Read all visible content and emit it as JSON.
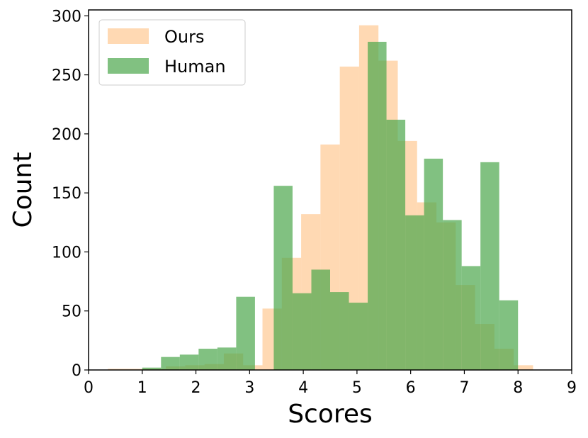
{
  "chart_data": {
    "type": "bar",
    "subtype": "overlapping-histogram",
    "xlabel": "Scores",
    "ylabel": "Count",
    "xlim": [
      0,
      9
    ],
    "ylim": [
      0,
      305
    ],
    "xticks": [
      "0",
      "1",
      "2",
      "3",
      "4",
      "5",
      "6",
      "7",
      "8",
      "9"
    ],
    "yticks": [
      "0",
      "50",
      "100",
      "150",
      "200",
      "250",
      "300"
    ],
    "grid": false,
    "legend_position": "top-left",
    "series": [
      {
        "name": "Ours",
        "color": "#ffbf80",
        "bins": [
          {
            "x0": 0.36,
            "x1": 0.72,
            "count": 1
          },
          {
            "x0": 0.72,
            "x1": 1.08,
            "count": 1
          },
          {
            "x0": 1.08,
            "x1": 1.44,
            "count": 1
          },
          {
            "x0": 1.44,
            "x1": 1.8,
            "count": 3
          },
          {
            "x0": 1.8,
            "x1": 2.16,
            "count": 4
          },
          {
            "x0": 2.16,
            "x1": 2.52,
            "count": 5
          },
          {
            "x0": 2.52,
            "x1": 2.88,
            "count": 14
          },
          {
            "x0": 2.88,
            "x1": 3.24,
            "count": 4
          },
          {
            "x0": 3.24,
            "x1": 3.6,
            "count": 52
          },
          {
            "x0": 3.6,
            "x1": 3.96,
            "count": 95
          },
          {
            "x0": 3.96,
            "x1": 4.32,
            "count": 132
          },
          {
            "x0": 4.32,
            "x1": 4.68,
            "count": 191
          },
          {
            "x0": 4.68,
            "x1": 5.04,
            "count": 257
          },
          {
            "x0": 5.04,
            "x1": 5.4,
            "count": 292
          },
          {
            "x0": 5.4,
            "x1": 5.76,
            "count": 262
          },
          {
            "x0": 5.76,
            "x1": 6.12,
            "count": 194
          },
          {
            "x0": 6.12,
            "x1": 6.48,
            "count": 142
          },
          {
            "x0": 6.48,
            "x1": 6.84,
            "count": 125
          },
          {
            "x0": 6.84,
            "x1": 7.2,
            "count": 72
          },
          {
            "x0": 7.2,
            "x1": 7.56,
            "count": 39
          },
          {
            "x0": 7.56,
            "x1": 7.92,
            "count": 18
          },
          {
            "x0": 7.92,
            "x1": 8.28,
            "count": 4
          }
        ]
      },
      {
        "name": "Human",
        "color": "#4ca64c",
        "bins": [
          {
            "x0": 1.0,
            "x1": 1.35,
            "count": 2
          },
          {
            "x0": 1.35,
            "x1": 1.7,
            "count": 11
          },
          {
            "x0": 1.7,
            "x1": 2.05,
            "count": 13
          },
          {
            "x0": 2.05,
            "x1": 2.4,
            "count": 18
          },
          {
            "x0": 2.4,
            "x1": 2.75,
            "count": 19
          },
          {
            "x0": 2.75,
            "x1": 3.1,
            "count": 62
          },
          {
            "x0": 3.1,
            "x1": 3.45,
            "count": 0
          },
          {
            "x0": 3.45,
            "x1": 3.8,
            "count": 156
          },
          {
            "x0": 3.8,
            "x1": 4.15,
            "count": 65
          },
          {
            "x0": 4.15,
            "x1": 4.5,
            "count": 85
          },
          {
            "x0": 4.5,
            "x1": 4.85,
            "count": 66
          },
          {
            "x0": 4.85,
            "x1": 5.2,
            "count": 57
          },
          {
            "x0": 5.2,
            "x1": 5.55,
            "count": 278
          },
          {
            "x0": 5.55,
            "x1": 5.9,
            "count": 212
          },
          {
            "x0": 5.9,
            "x1": 6.25,
            "count": 131
          },
          {
            "x0": 6.25,
            "x1": 6.6,
            "count": 179
          },
          {
            "x0": 6.6,
            "x1": 6.95,
            "count": 127
          },
          {
            "x0": 6.95,
            "x1": 7.3,
            "count": 88
          },
          {
            "x0": 7.3,
            "x1": 7.65,
            "count": 176
          },
          {
            "x0": 7.65,
            "x1": 8.0,
            "count": 59
          }
        ]
      }
    ]
  }
}
